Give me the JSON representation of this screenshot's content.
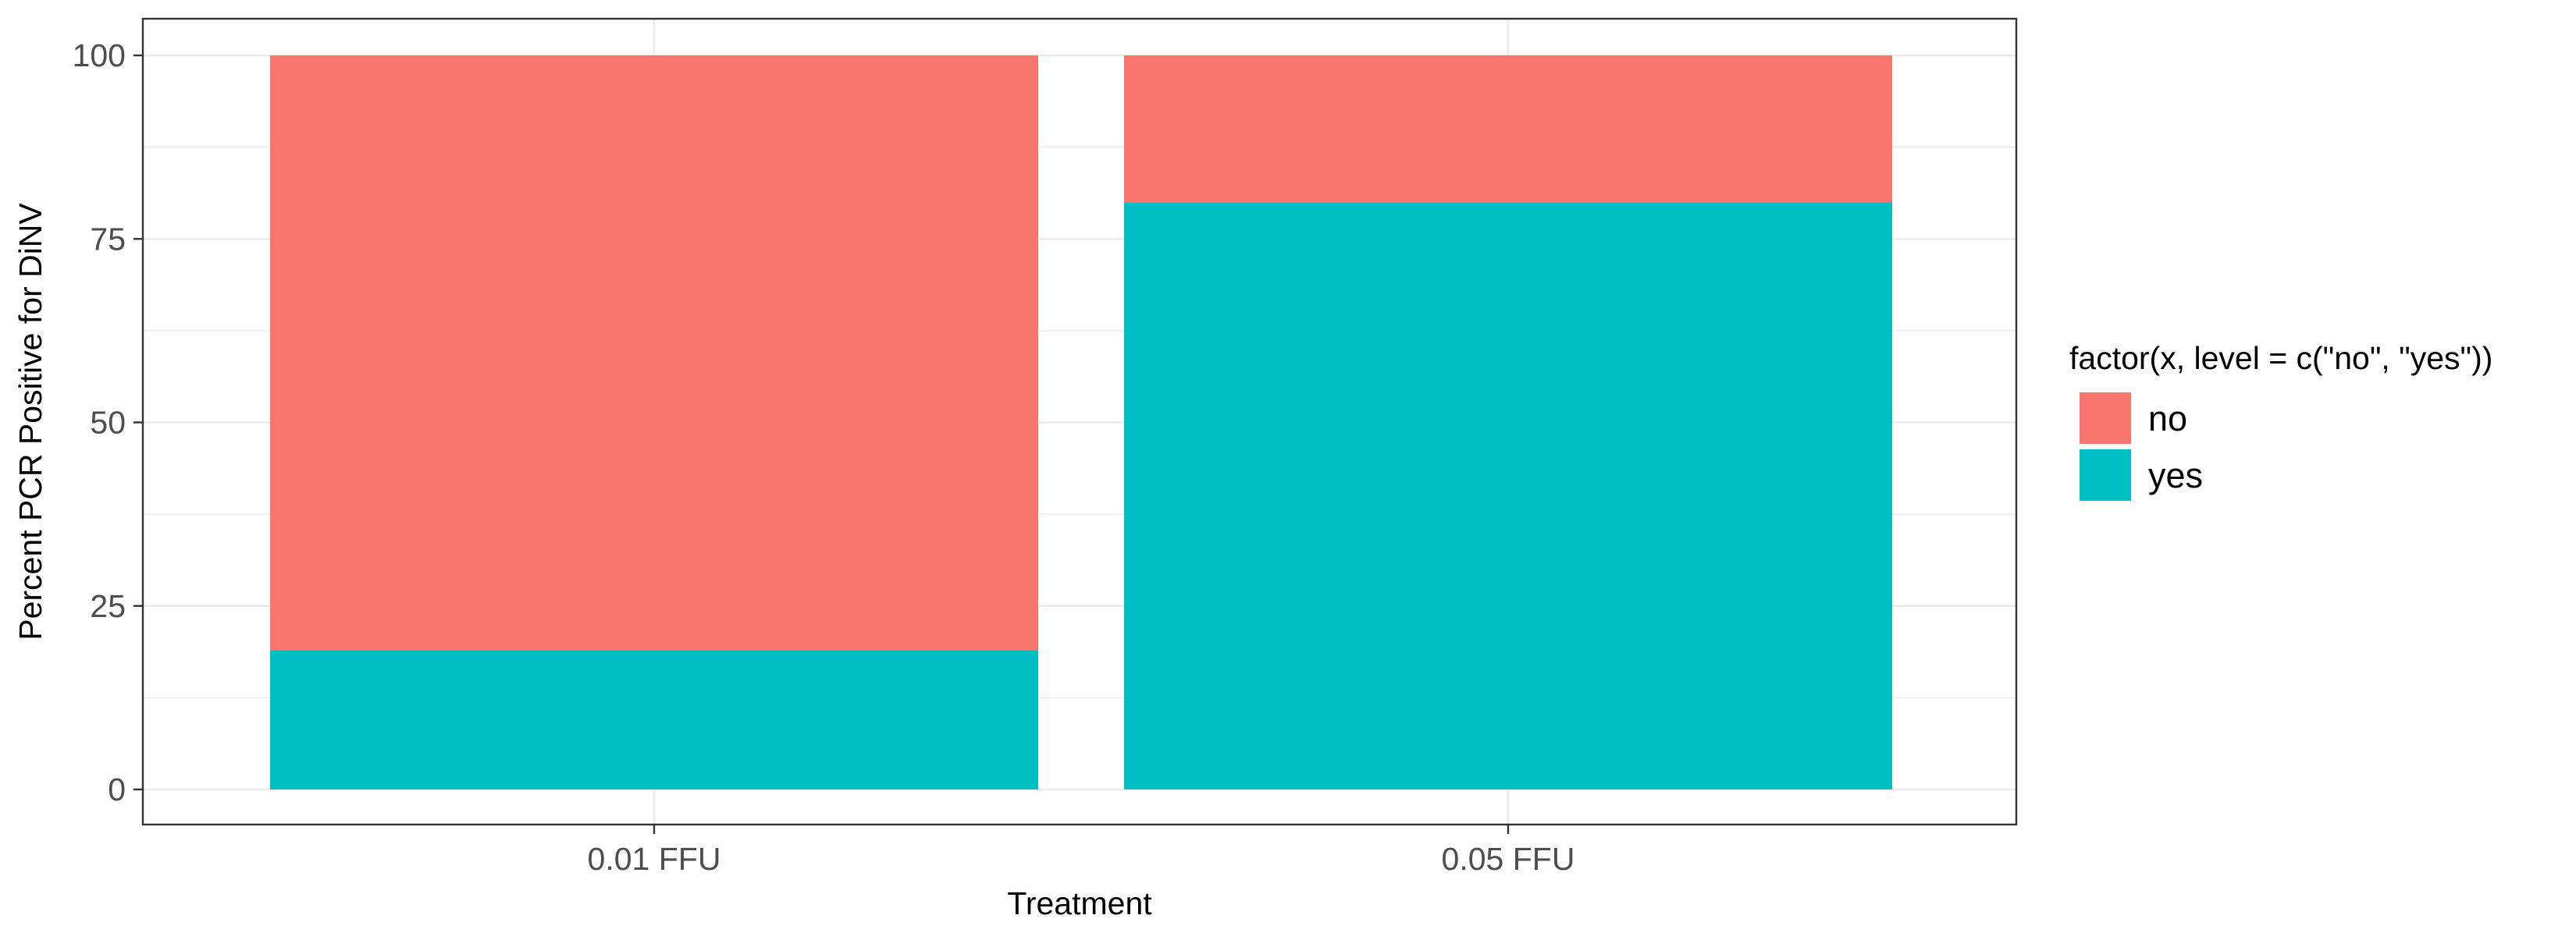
{
  "chart_data": {
    "type": "bar",
    "stacked": true,
    "categories": [
      "0.01 FFU",
      "0.05 FFU"
    ],
    "series": [
      {
        "name": "no",
        "values": [
          81,
          20
        ],
        "color": "#F8766D"
      },
      {
        "name": "yes",
        "values": [
          19,
          80
        ],
        "color": "#00BFC4"
      }
    ],
    "xlabel": "Treatment",
    "ylabel": "Percent PCR Positive for DiNV",
    "ylim": [
      0,
      100
    ],
    "yticks": [
      0,
      25,
      50,
      75,
      100
    ],
    "grid": true,
    "legend": {
      "title": "factor(x, level = c(\"no\", \"yes\"))",
      "placement": "right",
      "order": [
        "no",
        "yes"
      ]
    }
  }
}
